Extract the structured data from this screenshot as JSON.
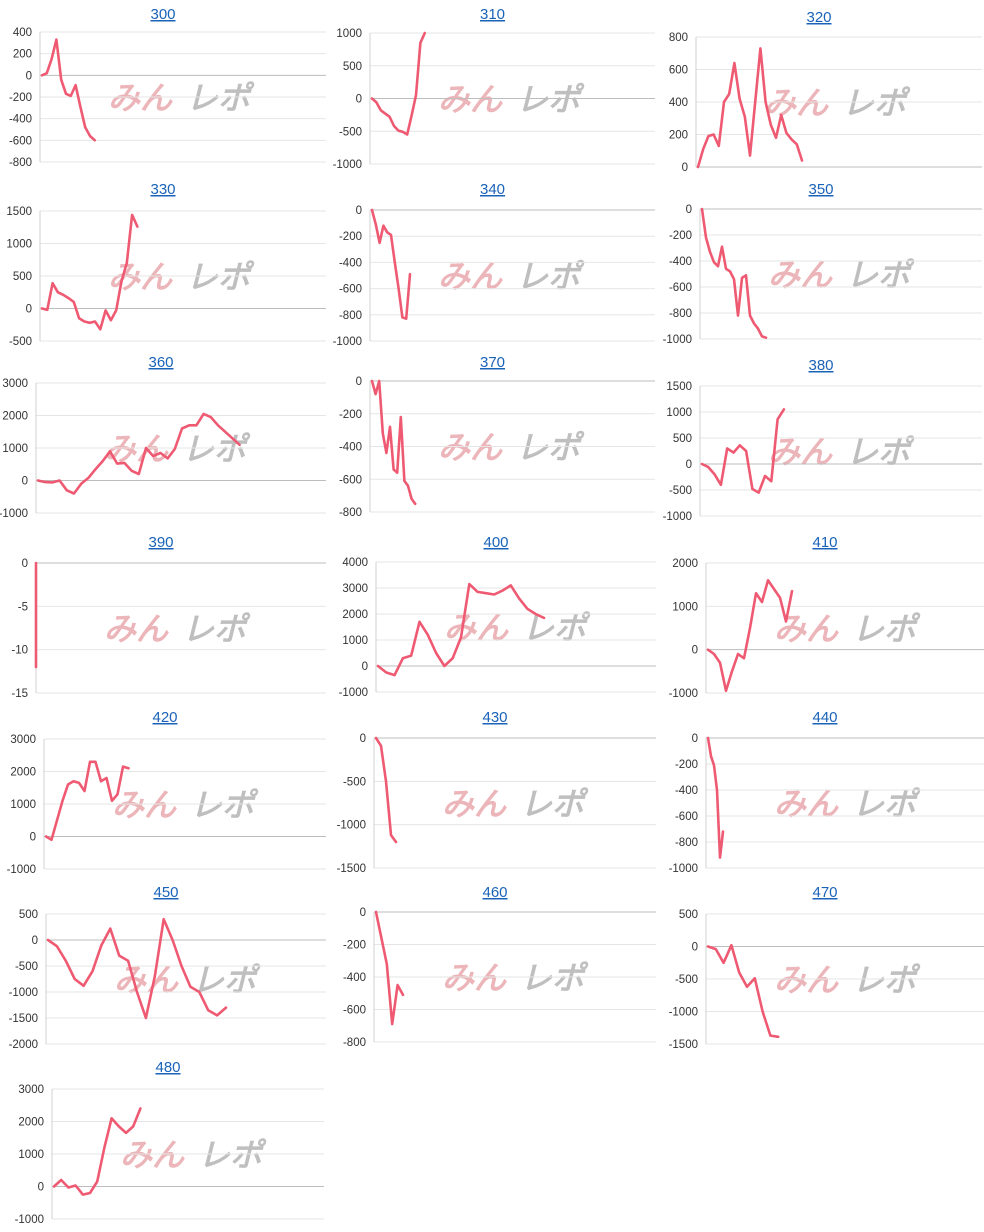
{
  "colors": {
    "line": "#ef5a73",
    "title": "#1a63b8",
    "grid": "#e6e6e6",
    "zero": "#bdbdbd"
  },
  "watermark": {
    "text_pink": "みん",
    "text_gray": "レポ"
  },
  "chart_data": [
    {
      "type": "line",
      "title": "300",
      "yticks": [
        400,
        200,
        0,
        -200,
        -400,
        -600,
        -800
      ],
      "ylim": [
        -800,
        400
      ],
      "values": [
        0,
        20,
        150,
        330,
        -40,
        -170,
        -190,
        -90,
        -290,
        -480,
        -560,
        -600
      ]
    },
    {
      "type": "line",
      "title": "310",
      "yticks": [
        1000,
        500,
        0,
        -500,
        -1000
      ],
      "ylim": [
        -1000,
        1000
      ],
      "values": [
        0,
        -60,
        -180,
        -230,
        -280,
        -420,
        -490,
        -510,
        -550,
        -260,
        50,
        850,
        1000
      ]
    },
    {
      "type": "line",
      "title": "320",
      "yticks": [
        800,
        600,
        400,
        200,
        0
      ],
      "ylim": [
        0,
        800
      ],
      "values": [
        0,
        110,
        190,
        200,
        130,
        400,
        450,
        640,
        420,
        310,
        70,
        400,
        730,
        400,
        260,
        180,
        320,
        210,
        170,
        140,
        40
      ]
    },
    {
      "type": "line",
      "title": "330",
      "yticks": [
        1500,
        1000,
        500,
        0,
        -500
      ],
      "ylim": [
        -500,
        1500
      ],
      "values": [
        0,
        -20,
        390,
        250,
        210,
        160,
        100,
        -150,
        -200,
        -220,
        -200,
        -320,
        -30,
        -180,
        -30,
        420,
        700,
        1440,
        1260
      ]
    },
    {
      "type": "line",
      "title": "340",
      "yticks": [
        0,
        -200,
        -400,
        -600,
        -800,
        -1000
      ],
      "ylim": [
        -1000,
        0
      ],
      "values": [
        0,
        -110,
        -250,
        -120,
        -170,
        -190,
        -400,
        -600,
        -820,
        -830,
        -490
      ]
    },
    {
      "type": "line",
      "title": "350",
      "yticks": [
        0,
        -200,
        -400,
        -600,
        -800,
        -1000
      ],
      "ylim": [
        -1000,
        0
      ],
      "values": [
        0,
        -220,
        -330,
        -410,
        -440,
        -290,
        -460,
        -480,
        -540,
        -820,
        -530,
        -510,
        -820,
        -880,
        -920,
        -980,
        -990
      ]
    },
    {
      "type": "line",
      "title": "360",
      "yticks": [
        3000,
        2000,
        1000,
        0,
        -1000
      ],
      "ylim": [
        -1000,
        3000
      ],
      "values": [
        0,
        -50,
        -60,
        0,
        -300,
        -400,
        -100,
        80,
        350,
        600,
        900,
        520,
        540,
        300,
        200,
        1000,
        750,
        850,
        680,
        970,
        1600,
        1700,
        1700,
        2050,
        1950,
        1700,
        1500,
        1300,
        1100
      ]
    },
    {
      "type": "line",
      "title": "370",
      "yticks": [
        0,
        -200,
        -400,
        -600,
        -800
      ],
      "ylim": [
        -800,
        0
      ],
      "values": [
        0,
        -80,
        0,
        -320,
        -440,
        -280,
        -540,
        -560,
        -220,
        -610,
        -640,
        -720,
        -750
      ]
    },
    {
      "type": "line",
      "title": "380",
      "yticks": [
        1500,
        1000,
        500,
        0,
        -500,
        -1000
      ],
      "ylim": [
        -1000,
        1500
      ],
      "values": [
        0,
        -60,
        -200,
        -400,
        300,
        220,
        360,
        250,
        -480,
        -550,
        -230,
        -330,
        860,
        1050
      ]
    },
    {
      "type": "line",
      "title": "390",
      "yticks": [
        0,
        -5,
        -10,
        -15
      ],
      "ylim": [
        -15,
        0
      ],
      "values": [
        0,
        -12
      ]
    },
    {
      "type": "line",
      "title": "400",
      "yticks": [
        4000,
        3000,
        2000,
        1000,
        0,
        -1000
      ],
      "ylim": [
        -1000,
        4000
      ],
      "values": [
        0,
        -250,
        -350,
        300,
        400,
        1700,
        1200,
        500,
        0,
        300,
        1100,
        3150,
        2850,
        2800,
        2750,
        2900,
        3100,
        2600,
        2200,
        2000,
        1850
      ]
    },
    {
      "type": "line",
      "title": "410",
      "yticks": [
        2000,
        1000,
        0,
        -1000
      ],
      "ylim": [
        -1000,
        2000
      ],
      "values": [
        0,
        -100,
        -300,
        -950,
        -500,
        -100,
        -200,
        500,
        1300,
        1100,
        1600,
        1400,
        1200,
        650,
        1350
      ]
    },
    {
      "type": "line",
      "title": "420",
      "yticks": [
        3000,
        2000,
        1000,
        0,
        -1000
      ],
      "ylim": [
        -1000,
        3000
      ],
      "values": [
        0,
        -100,
        500,
        1100,
        1600,
        1700,
        1650,
        1400,
        2300,
        2300,
        1700,
        1800,
        1100,
        1300,
        2150,
        2100
      ]
    },
    {
      "type": "line",
      "title": "430",
      "yticks": [
        0,
        -500,
        -1000,
        -1500
      ],
      "ylim": [
        -1500,
        0
      ],
      "values": [
        0,
        -90,
        -500,
        -1120,
        -1200
      ]
    },
    {
      "type": "line",
      "title": "440",
      "yticks": [
        0,
        -200,
        -400,
        -600,
        -800,
        -1000
      ],
      "ylim": [
        -1000,
        0
      ],
      "values": [
        0,
        -140,
        -210,
        -400,
        -920,
        -720
      ]
    },
    {
      "type": "line",
      "title": "450",
      "yticks": [
        500,
        0,
        -500,
        -1000,
        -1500,
        -2000
      ],
      "ylim": [
        -2000,
        500
      ],
      "values": [
        0,
        -120,
        -400,
        -750,
        -880,
        -600,
        -100,
        220,
        -300,
        -400,
        -1000,
        -1500,
        -700,
        400,
        0,
        -500,
        -900,
        -1000,
        -1350,
        -1450,
        -1300
      ]
    },
    {
      "type": "line",
      "title": "460",
      "yticks": [
        0,
        -200,
        -400,
        -600,
        -800
      ],
      "ylim": [
        -800,
        0
      ],
      "values": [
        0,
        -160,
        -320,
        -690,
        -450,
        -510
      ]
    },
    {
      "type": "line",
      "title": "470",
      "yticks": [
        500,
        0,
        -500,
        -1000,
        -1500
      ],
      "ylim": [
        -1500,
        500
      ],
      "values": [
        0,
        -40,
        -250,
        20,
        -400,
        -620,
        -490,
        -1000,
        -1370,
        -1390
      ]
    },
    {
      "type": "line",
      "title": "480",
      "yticks": [
        3000,
        2000,
        1000,
        0,
        -1000
      ],
      "ylim": [
        -1000,
        3000
      ],
      "values": [
        0,
        200,
        -30,
        30,
        -250,
        -200,
        150,
        1200,
        2100,
        1850,
        1650,
        1850,
        2400
      ]
    }
  ]
}
